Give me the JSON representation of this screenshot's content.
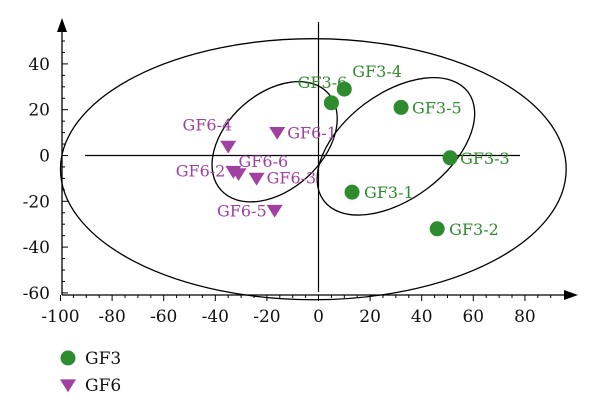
{
  "chart_data": {
    "type": "scatter",
    "title": "",
    "xlabel": "",
    "ylabel": "",
    "xlim": [
      -100,
      95
    ],
    "ylim": [
      -60,
      55
    ],
    "x_ticks": [
      -100,
      -80,
      -60,
      -40,
      -20,
      0,
      20,
      40,
      60,
      80
    ],
    "y_ticks": [
      40,
      20,
      0,
      -20,
      -40,
      -60
    ],
    "tick_labels_x": [
      "-100",
      "-80",
      "-60",
      "-40",
      "-20",
      "0",
      "20",
      "40",
      "60",
      "80"
    ],
    "tick_labels_y": [
      "40",
      "20",
      "0",
      "-20",
      "-40",
      "-60"
    ],
    "grid": false,
    "legend_position": "bottom-left",
    "colors": {
      "GF3": "#2e8b2e",
      "GF6": "#a040a0",
      "axis": "#000000"
    },
    "series": [
      {
        "name": "GF3",
        "marker": "circle",
        "points": [
          {
            "label": "GF3-1",
            "x": 13,
            "y": -16
          },
          {
            "label": "GF3-2",
            "x": 46,
            "y": -32
          },
          {
            "label": "GF3-3",
            "x": 51,
            "y": -1
          },
          {
            "label": "GF3-4",
            "x": 10,
            "y": 29
          },
          {
            "label": "GF3-5",
            "x": 32,
            "y": 21
          },
          {
            "label": "GF3-6",
            "x": 5,
            "y": 23
          }
        ]
      },
      {
        "name": "GF6",
        "marker": "triangle-down",
        "points": [
          {
            "label": "GF6-1",
            "x": -16,
            "y": 10
          },
          {
            "label": "GF6-2",
            "x": -33,
            "y": -7
          },
          {
            "label": "GF6-3",
            "x": -24,
            "y": -10
          },
          {
            "label": "GF6-4",
            "x": -35,
            "y": 4
          },
          {
            "label": "GF6-5",
            "x": -17,
            "y": -24
          },
          {
            "label": "GF6-6",
            "x": -31,
            "y": -8
          }
        ]
      }
    ],
    "ellipses": [
      {
        "cx": -2,
        "cy": -6,
        "rx": 98,
        "ry": 57,
        "angle": 0
      },
      {
        "cx": -17,
        "cy": 6,
        "rx": 28,
        "ry": 21,
        "angle": -42
      },
      {
        "cx": 30,
        "cy": 4,
        "rx": 35,
        "ry": 23,
        "angle": -37
      }
    ],
    "legend": [
      {
        "name": "GF3",
        "marker": "circle"
      },
      {
        "name": "GF6",
        "marker": "triangle-down"
      }
    ]
  }
}
